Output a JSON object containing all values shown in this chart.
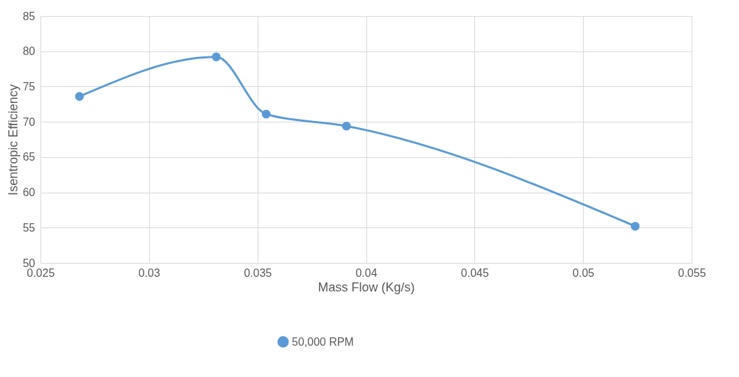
{
  "chart_data": {
    "type": "line",
    "xlabel": "Mass Flow (Kg/s)",
    "ylabel": "Isentropic Efficiency",
    "x": [
      0.0268,
      0.0331,
      0.0354,
      0.0391,
      0.0524
    ],
    "series": [
      {
        "name": "50,000 RPM",
        "color": "#5b9bd5",
        "values": [
          73.6,
          79.2,
          71.1,
          69.4,
          55.2
        ]
      }
    ],
    "xlim": [
      0.025,
      0.055
    ],
    "xticks": [
      0.025,
      0.03,
      0.035,
      0.04,
      0.045,
      0.05,
      0.055
    ],
    "ylim": [
      50,
      85
    ],
    "yticks": [
      50,
      55,
      60,
      65,
      70,
      75,
      80,
      85
    ],
    "grid": true,
    "legend": "bottom",
    "marker": "circle",
    "line_style": "solid"
  }
}
